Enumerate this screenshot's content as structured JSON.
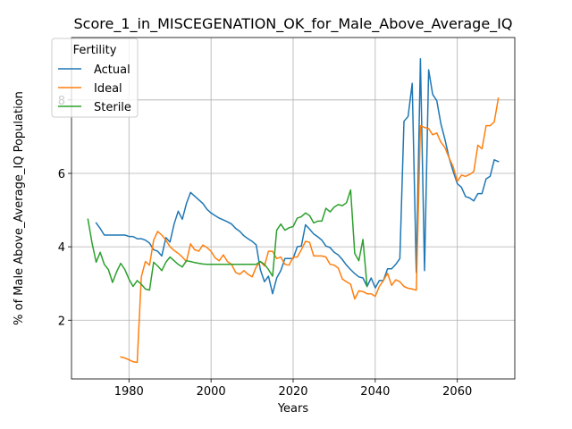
{
  "chart_data": {
    "type": "line",
    "title": "Score_1_in_MISCEGENATION_OK_for_Male_Above_Average_IQ",
    "xlabel": "Years",
    "ylabel": "% of Male Above_Average_IQ Population",
    "xlim": [
      1966,
      2074
    ],
    "ylim": [
      0.4,
      9.7
    ],
    "xticks": [
      1980,
      2000,
      2020,
      2040,
      2060
    ],
    "yticks": [
      2,
      4,
      6,
      8
    ],
    "grid": true,
    "legend": {
      "title": "Fertility",
      "position": "top-left"
    },
    "series": [
      {
        "name": "Actual",
        "color": "#1f77b4",
        "x": [
          1972,
          1973,
          1974,
          1975,
          1976,
          1977,
          1978,
          1979,
          1980,
          1981,
          1982,
          1983,
          1984,
          1985,
          1986,
          1987,
          1988,
          1989,
          1990,
          1991,
          1992,
          1993,
          1994,
          1995,
          1996,
          1997,
          1998,
          1999,
          2000,
          2001,
          2002,
          2003,
          2004,
          2005,
          2006,
          2007,
          2008,
          2009,
          2010,
          2011,
          2012,
          2013,
          2014,
          2015,
          2016,
          2017,
          2018,
          2019,
          2020,
          2021,
          2022,
          2023,
          2024,
          2025,
          2026,
          2027,
          2028,
          2029,
          2030,
          2031,
          2032,
          2033,
          2034,
          2035,
          2036,
          2037,
          2038,
          2039,
          2040,
          2041,
          2042,
          2043,
          2044,
          2045,
          2046,
          2047,
          2048,
          2049,
          2050,
          2051,
          2052,
          2053,
          2054,
          2055,
          2056,
          2057,
          2058,
          2059,
          2060,
          2061,
          2062,
          2063,
          2064,
          2065,
          2066,
          2067,
          2068,
          2069,
          2070
        ],
        "y": [
          4.65,
          4.5,
          4.32,
          4.32,
          4.32,
          4.32,
          4.32,
          4.32,
          4.28,
          4.28,
          4.22,
          4.22,
          4.18,
          4.1,
          3.92,
          3.88,
          3.75,
          4.25,
          4.13,
          4.62,
          4.97,
          4.75,
          5.18,
          5.48,
          5.38,
          5.28,
          5.18,
          5.02,
          4.92,
          4.85,
          4.78,
          4.73,
          4.68,
          4.62,
          4.5,
          4.42,
          4.3,
          4.22,
          4.15,
          4.05,
          3.38,
          3.05,
          3.2,
          2.72,
          3.15,
          3.35,
          3.68,
          3.68,
          3.68,
          4.0,
          4.02,
          4.6,
          4.48,
          4.35,
          4.27,
          4.18,
          4.02,
          3.98,
          3.85,
          3.78,
          3.65,
          3.5,
          3.38,
          3.27,
          3.18,
          3.15,
          2.92,
          3.15,
          2.88,
          3.08,
          3.08,
          3.4,
          3.4,
          3.52,
          3.68,
          7.42,
          7.55,
          8.45,
          3.3,
          9.12,
          3.35,
          8.82,
          8.15,
          7.98,
          7.35,
          6.92,
          6.42,
          6.05,
          5.72,
          5.62,
          5.37,
          5.33,
          5.25,
          5.45,
          5.45,
          5.85,
          5.92,
          6.37,
          6.32
        ]
      },
      {
        "name": "Ideal",
        "color": "#ff7f0e",
        "x": [
          1978,
          1979,
          1980,
          1981,
          1982,
          1983,
          1984,
          1985,
          1986,
          1987,
          1988,
          1989,
          1990,
          1991,
          1992,
          1993,
          1994,
          1995,
          1996,
          1997,
          1998,
          1999,
          2000,
          2001,
          2002,
          2003,
          2004,
          2005,
          2006,
          2007,
          2008,
          2009,
          2010,
          2011,
          2012,
          2013,
          2014,
          2015,
          2016,
          2017,
          2018,
          2019,
          2020,
          2021,
          2022,
          2023,
          2024,
          2025,
          2026,
          2027,
          2028,
          2029,
          2030,
          2031,
          2032,
          2033,
          2034,
          2035,
          2036,
          2037,
          2038,
          2039,
          2040,
          2041,
          2042,
          2043,
          2044,
          2045,
          2046,
          2047,
          2048,
          2049,
          2050,
          2051,
          2052,
          2053,
          2054,
          2055,
          2056,
          2057,
          2058,
          2059,
          2060,
          2061,
          2062,
          2063,
          2064,
          2065,
          2066,
          2067,
          2068,
          2069,
          2070
        ],
        "y": [
          1.0,
          0.97,
          0.92,
          0.87,
          0.85,
          3.18,
          3.6,
          3.5,
          4.18,
          4.42,
          4.32,
          4.18,
          4.0,
          3.9,
          3.82,
          3.72,
          3.6,
          4.08,
          3.92,
          3.88,
          4.05,
          3.98,
          3.88,
          3.7,
          3.62,
          3.78,
          3.6,
          3.52,
          3.3,
          3.25,
          3.35,
          3.25,
          3.18,
          3.45,
          3.6,
          3.48,
          3.88,
          3.88,
          3.68,
          3.72,
          3.52,
          3.5,
          3.72,
          3.72,
          3.92,
          4.15,
          4.12,
          3.75,
          3.75,
          3.75,
          3.72,
          3.52,
          3.5,
          3.42,
          3.12,
          3.05,
          2.98,
          2.58,
          2.8,
          2.78,
          2.72,
          2.72,
          2.65,
          2.92,
          3.08,
          3.28,
          2.95,
          3.1,
          3.05,
          2.92,
          2.87,
          2.85,
          2.82,
          7.3,
          7.25,
          7.22,
          7.05,
          7.1,
          6.85,
          6.7,
          6.42,
          6.18,
          5.78,
          5.95,
          5.92,
          5.97,
          6.05,
          6.77,
          6.67,
          7.3,
          7.3,
          7.4,
          8.05
        ]
      },
      {
        "name": "Sterile",
        "color": "#2ca02c",
        "x": [
          1970,
          1971,
          1972,
          1973,
          1974,
          1975,
          1976,
          1977,
          1978,
          1979,
          1980,
          1981,
          1982,
          1983,
          1984,
          1985,
          1986,
          1987,
          1988,
          1989,
          1990,
          1991,
          1992,
          1993,
          1994,
          1995,
          1996,
          1997,
          1998,
          1999,
          2000,
          2001,
          2002,
          2003,
          2004,
          2005,
          2006,
          2007,
          2008,
          2009,
          2010,
          2011,
          2012,
          2013,
          2014,
          2015,
          2016,
          2017,
          2018,
          2019,
          2020,
          2021,
          2022,
          2023,
          2024,
          2025,
          2026,
          2027,
          2028,
          2029,
          2030,
          2031,
          2032,
          2033,
          2034,
          2035,
          2036,
          2037,
          2038
        ],
        "y": [
          4.75,
          4.1,
          3.58,
          3.85,
          3.52,
          3.38,
          3.03,
          3.32,
          3.55,
          3.38,
          3.12,
          2.92,
          3.08,
          2.98,
          2.85,
          2.82,
          3.58,
          3.48,
          3.35,
          3.58,
          3.72,
          3.62,
          3.52,
          3.45,
          3.62,
          3.6,
          3.57,
          3.55,
          3.53,
          3.52,
          3.52,
          3.52,
          3.52,
          3.52,
          3.52,
          3.52,
          3.52,
          3.52,
          3.52,
          3.52,
          3.52,
          3.52,
          3.6,
          3.52,
          3.38,
          3.2,
          4.45,
          4.62,
          4.45,
          4.52,
          4.55,
          4.78,
          4.82,
          4.92,
          4.85,
          4.65,
          4.7,
          4.7,
          5.05,
          4.95,
          5.08,
          5.15,
          5.12,
          5.2,
          5.55,
          3.82,
          3.62,
          4.2,
          2.92
        ]
      }
    ]
  }
}
